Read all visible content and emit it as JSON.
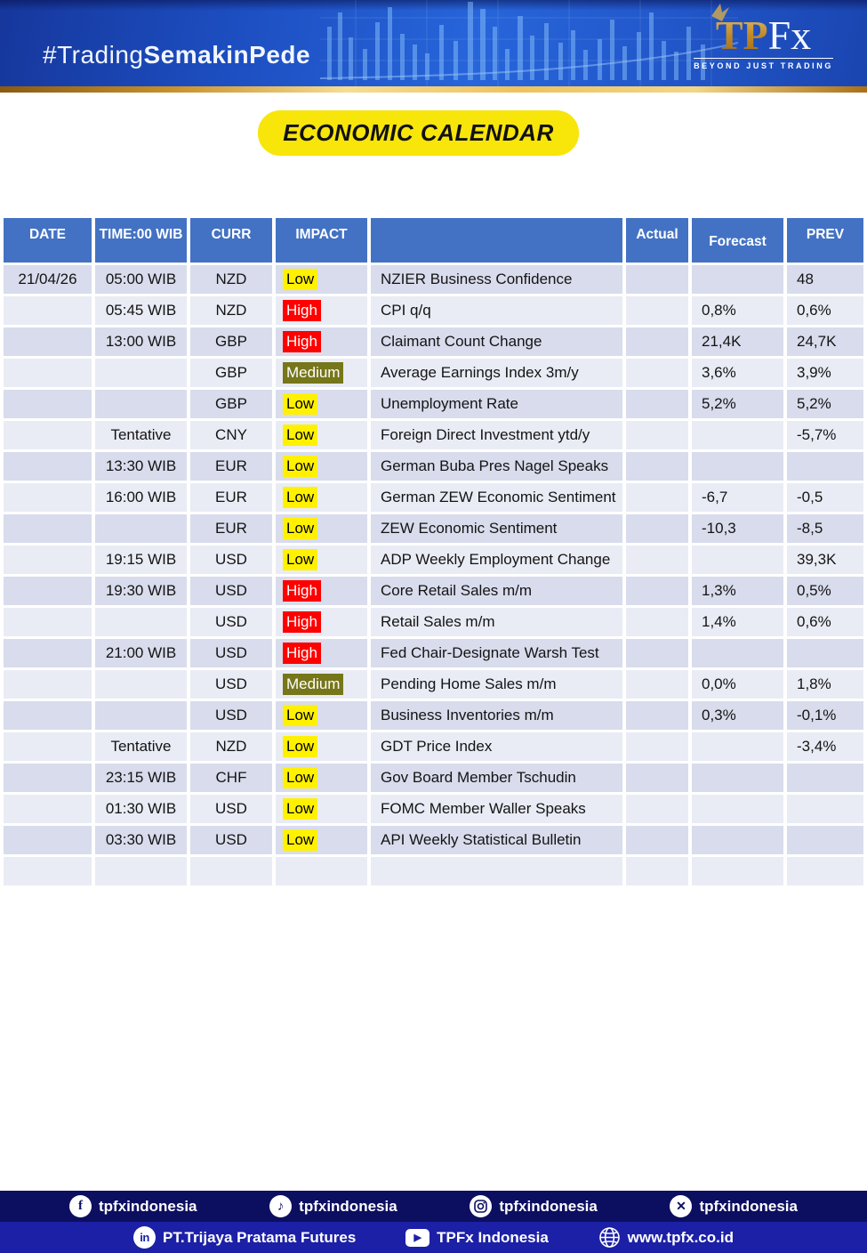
{
  "header": {
    "hashtag_regular": "#Trading",
    "hashtag_bold": "SemakinPede",
    "logo_tp": "TP",
    "logo_fx": "Fx",
    "logo_tagline": "BEYOND JUST TRADING"
  },
  "title_badge": "ECONOMIC CALENDAR",
  "colors": {
    "table_header": "#4372c4",
    "row_dark": "#d8dcec",
    "row_light": "#e9ecf5",
    "impact_low": "#fff100",
    "impact_high": "#ff0000",
    "impact_medium": "#76761a",
    "footer_bar1": "#0c0f60",
    "footer_bar2": "#1c20a6",
    "badge_yellow": "#f8e50a"
  },
  "table": {
    "columns": [
      "DATE",
      "TIME:00 WIB",
      "CURR",
      "IMPACT",
      "",
      "Actual",
      "Forecast",
      "PREV"
    ],
    "rows": [
      {
        "date": "21/04/26",
        "time": "05:00 WIB",
        "curr": "NZD",
        "impact": "Low",
        "event": "NZIER Business Confidence",
        "actual": "",
        "forecast": "",
        "prev": "48"
      },
      {
        "date": "",
        "time": "05:45 WIB",
        "curr": "NZD",
        "impact": "High",
        "event": "CPI q/q",
        "actual": "",
        "forecast": "0,8%",
        "prev": "0,6%"
      },
      {
        "date": "",
        "time": "13:00 WIB",
        "curr": "GBP",
        "impact": "High",
        "event": "Claimant Count Change",
        "actual": "",
        "forecast": "21,4K",
        "prev": "24,7K"
      },
      {
        "date": "",
        "time": "",
        "curr": "GBP",
        "impact": "Medium",
        "event": "Average Earnings Index 3m/y",
        "actual": "",
        "forecast": "3,6%",
        "prev": "3,9%"
      },
      {
        "date": "",
        "time": "",
        "curr": "GBP",
        "impact": "Low",
        "event": "Unemployment Rate",
        "actual": "",
        "forecast": "5,2%",
        "prev": "5,2%"
      },
      {
        "date": "",
        "time": "Tentative",
        "curr": "CNY",
        "impact": "Low",
        "event": "Foreign Direct Investment ytd/y",
        "actual": "",
        "forecast": "",
        "prev": "-5,7%"
      },
      {
        "date": "",
        "time": "13:30 WIB",
        "curr": "EUR",
        "impact": "Low",
        "event": "German Buba Pres Nagel Speaks",
        "actual": "",
        "forecast": "",
        "prev": ""
      },
      {
        "date": "",
        "time": "16:00 WIB",
        "curr": "EUR",
        "impact": "Low",
        "event": "German ZEW Economic Sentiment",
        "actual": "",
        "forecast": "-6,7",
        "prev": "-0,5"
      },
      {
        "date": "",
        "time": "",
        "curr": "EUR",
        "impact": "Low",
        "event": "ZEW Economic Sentiment",
        "actual": "",
        "forecast": "-10,3",
        "prev": "-8,5"
      },
      {
        "date": "",
        "time": "19:15 WIB",
        "curr": "USD",
        "impact": "Low",
        "event": "ADP Weekly Employment Change",
        "actual": "",
        "forecast": "",
        "prev": "39,3K"
      },
      {
        "date": "",
        "time": "19:30 WIB",
        "curr": "USD",
        "impact": "High",
        "event": "Core Retail Sales m/m",
        "actual": "",
        "forecast": "1,3%",
        "prev": "0,5%"
      },
      {
        "date": "",
        "time": "",
        "curr": "USD",
        "impact": "High",
        "event": "Retail Sales m/m",
        "actual": "",
        "forecast": "1,4%",
        "prev": "0,6%"
      },
      {
        "date": "",
        "time": "21:00 WIB",
        "curr": "USD",
        "impact": "High",
        "event": "Fed Chair-Designate Warsh Test",
        "actual": "",
        "forecast": "",
        "prev": ""
      },
      {
        "date": "",
        "time": "",
        "curr": "USD",
        "impact": "Medium",
        "event": "Pending Home Sales m/m",
        "actual": "",
        "forecast": "0,0%",
        "prev": "1,8%"
      },
      {
        "date": "",
        "time": "",
        "curr": "USD",
        "impact": "Low",
        "event": "Business Inventories m/m",
        "actual": "",
        "forecast": "0,3%",
        "prev": "-0,1%"
      },
      {
        "date": "",
        "time": "Tentative",
        "curr": "NZD",
        "impact": "Low",
        "event": "GDT Price Index",
        "actual": "",
        "forecast": "",
        "prev": "-3,4%"
      },
      {
        "date": "",
        "time": "23:15 WIB",
        "curr": "CHF",
        "impact": "Low",
        "event": "Gov Board Member Tschudin",
        "actual": "",
        "forecast": "",
        "prev": ""
      },
      {
        "date": "",
        "time": "01:30 WIB",
        "curr": "USD",
        "impact": "Low",
        "event": "FOMC Member Waller Speaks",
        "actual": "",
        "forecast": "",
        "prev": ""
      },
      {
        "date": "",
        "time": "03:30 WIB",
        "curr": "USD",
        "impact": "Low",
        "event": "API Weekly Statistical Bulletin",
        "actual": "",
        "forecast": "",
        "prev": ""
      },
      {
        "date": "",
        "time": "",
        "curr": "",
        "impact": "",
        "event": "",
        "actual": "",
        "forecast": "",
        "prev": ""
      }
    ]
  },
  "footer": {
    "bar1": [
      {
        "icon": "facebook-icon",
        "label": "tpfxindonesia"
      },
      {
        "icon": "tiktok-icon",
        "label": "tpfxindonesia"
      },
      {
        "icon": "instagram-icon",
        "label": "tpfxindonesia"
      },
      {
        "icon": "x-icon",
        "label": "tpfxindonesia"
      }
    ],
    "bar2": [
      {
        "icon": "linkedin-icon",
        "label": "PT.Trijaya Pratama Futures"
      },
      {
        "icon": "youtube-icon",
        "label": "TPFx Indonesia"
      },
      {
        "icon": "globe-icon",
        "label": "www.tpfx.co.id"
      }
    ]
  }
}
